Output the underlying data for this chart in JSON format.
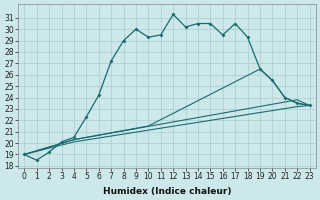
{
  "xlabel": "Humidex (Indice chaleur)",
  "background_color": "#cce8ea",
  "grid_color": "#aacdd0",
  "line_color": "#1a6b6e",
  "x": [
    0,
    1,
    2,
    3,
    4,
    5,
    6,
    7,
    8,
    9,
    10,
    11,
    12,
    13,
    14,
    15,
    16,
    17,
    18,
    19,
    20,
    21,
    22,
    23
  ],
  "main_y": [
    19.0,
    18.5,
    19.2,
    20.1,
    20.5,
    22.3,
    24.2,
    27.2,
    29.0,
    30.0,
    29.3,
    29.5,
    31.3,
    30.2,
    30.5,
    30.5,
    29.5,
    30.5,
    29.3,
    26.5,
    25.5,
    24.0,
    23.5,
    23.3
  ],
  "line2_x": [
    0,
    4,
    10,
    19,
    20,
    21,
    22,
    23
  ],
  "line2_y": [
    19.0,
    20.3,
    21.5,
    26.5,
    25.5,
    24.0,
    23.5,
    23.3
  ],
  "line3_x": [
    0,
    4,
    22,
    23
  ],
  "line3_y": [
    19.0,
    20.3,
    23.8,
    23.3
  ],
  "line4_x": [
    0,
    4,
    22,
    23
  ],
  "line4_y": [
    19.0,
    20.1,
    23.2,
    23.3
  ],
  "ylim_min": 17.8,
  "ylim_max": 32.2,
  "yticks": [
    18,
    19,
    20,
    21,
    22,
    23,
    24,
    25,
    26,
    27,
    28,
    29,
    30,
    31
  ],
  "xticks": [
    0,
    1,
    2,
    3,
    4,
    5,
    6,
    7,
    8,
    9,
    10,
    11,
    12,
    13,
    14,
    15,
    16,
    17,
    18,
    19,
    20,
    21,
    22,
    23
  ],
  "tick_fontsize": 5.5,
  "xlabel_fontsize": 6.5
}
